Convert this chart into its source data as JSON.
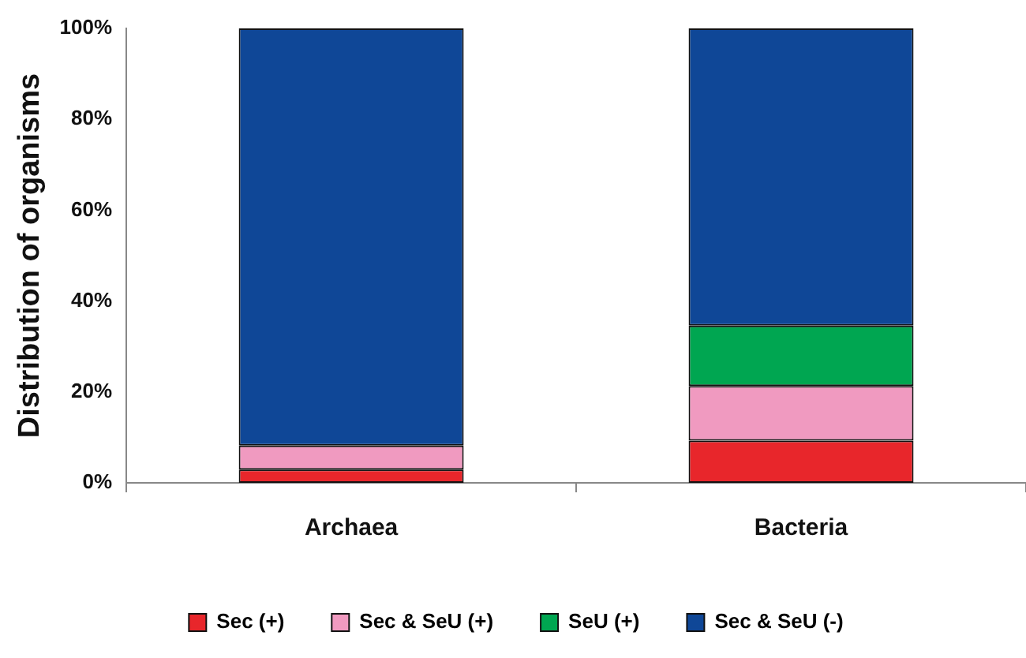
{
  "chart_data": {
    "type": "bar",
    "stacked": true,
    "ylabel": "Distribution of organisms",
    "categories": [
      "Archaea",
      "Bacteria"
    ],
    "series": [
      {
        "name": "Sec (+)",
        "color": "#e8262b",
        "values": [
          2.9,
          9.3
        ]
      },
      {
        "name": "Sec & SeU (+)",
        "color": "#f09ac0",
        "values": [
          5.3,
          12.0
        ]
      },
      {
        "name": "SeU (+)",
        "color": "#00a651",
        "values": [
          0,
          13.3
        ]
      },
      {
        "name": "Sec & SeU (-)",
        "color": "#0f4797",
        "values": [
          91.8,
          65.4
        ]
      }
    ],
    "ylim": [
      0,
      100
    ],
    "yticks": [
      {
        "value": 0,
        "label": "0%"
      },
      {
        "value": 20,
        "label": "20%"
      },
      {
        "value": 40,
        "label": "40%"
      },
      {
        "value": 60,
        "label": "60%"
      },
      {
        "value": 80,
        "label": "80%"
      },
      {
        "value": 100,
        "label": "100%"
      }
    ],
    "grid": false,
    "legend": "bottom"
  }
}
